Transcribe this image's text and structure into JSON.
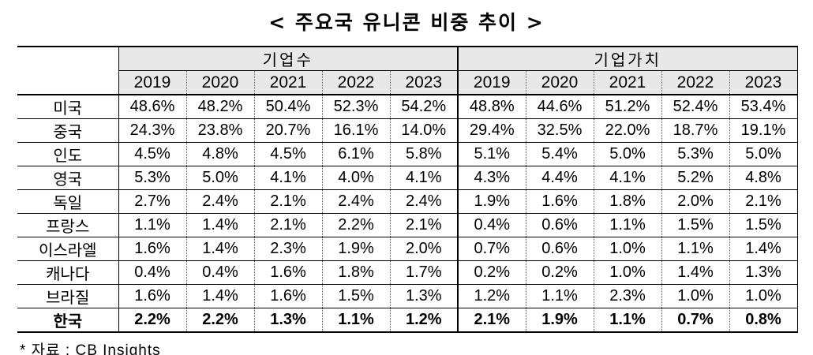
{
  "title": "< 주요국 유니콘 비중 추이 >",
  "source": "* 자료 : CB Insights",
  "colors": {
    "header_bg": "#e8e8e8",
    "border": "#000000",
    "background": "#ffffff"
  },
  "chart_data": {
    "type": "table",
    "title": "주요국 유니콘 비중 추이",
    "column_groups": [
      "기업수",
      "기업가치"
    ],
    "years": [
      "2019",
      "2020",
      "2021",
      "2022",
      "2023"
    ],
    "unit": "%",
    "rows": [
      {
        "country": "미국",
        "count_share": [
          "48.6%",
          "48.2%",
          "50.4%",
          "52.3%",
          "54.2%"
        ],
        "value_share": [
          "48.8%",
          "44.6%",
          "51.2%",
          "52.4%",
          "53.4%"
        ],
        "bold": false
      },
      {
        "country": "중국",
        "count_share": [
          "24.3%",
          "23.8%",
          "20.7%",
          "16.1%",
          "14.0%"
        ],
        "value_share": [
          "29.4%",
          "32.5%",
          "22.0%",
          "18.7%",
          "19.1%"
        ],
        "bold": false
      },
      {
        "country": "인도",
        "count_share": [
          "4.5%",
          "4.8%",
          "4.5%",
          "6.1%",
          "5.8%"
        ],
        "value_share": [
          "5.1%",
          "5.4%",
          "5.0%",
          "5.3%",
          "5.0%"
        ],
        "bold": false
      },
      {
        "country": "영국",
        "count_share": [
          "5.3%",
          "5.0%",
          "4.1%",
          "4.0%",
          "4.1%"
        ],
        "value_share": [
          "4.3%",
          "4.4%",
          "4.1%",
          "5.2%",
          "4.8%"
        ],
        "bold": false
      },
      {
        "country": "독일",
        "count_share": [
          "2.7%",
          "2.4%",
          "2.1%",
          "2.4%",
          "2.4%"
        ],
        "value_share": [
          "1.9%",
          "1.6%",
          "1.8%",
          "2.0%",
          "2.1%"
        ],
        "bold": false
      },
      {
        "country": "프랑스",
        "count_share": [
          "1.1%",
          "1.4%",
          "2.1%",
          "2.2%",
          "2.1%"
        ],
        "value_share": [
          "0.4%",
          "0.6%",
          "1.1%",
          "1.5%",
          "1.5%"
        ],
        "bold": false
      },
      {
        "country": "이스라엘",
        "count_share": [
          "1.6%",
          "1.4%",
          "2.3%",
          "1.9%",
          "2.0%"
        ],
        "value_share": [
          "0.7%",
          "0.6%",
          "1.0%",
          "1.1%",
          "1.4%"
        ],
        "bold": false
      },
      {
        "country": "캐나다",
        "count_share": [
          "0.4%",
          "0.4%",
          "1.6%",
          "1.8%",
          "1.7%"
        ],
        "value_share": [
          "0.2%",
          "0.2%",
          "1.0%",
          "1.4%",
          "1.3%"
        ],
        "bold": false
      },
      {
        "country": "브라질",
        "count_share": [
          "1.6%",
          "1.4%",
          "1.6%",
          "1.5%",
          "1.3%"
        ],
        "value_share": [
          "1.2%",
          "1.1%",
          "2.3%",
          "1.0%",
          "1.0%"
        ],
        "bold": false
      },
      {
        "country": "한국",
        "count_share": [
          "2.2%",
          "2.2%",
          "1.3%",
          "1.1%",
          "1.2%"
        ],
        "value_share": [
          "2.1%",
          "1.9%",
          "1.1%",
          "0.7%",
          "0.8%"
        ],
        "bold": true
      }
    ]
  }
}
